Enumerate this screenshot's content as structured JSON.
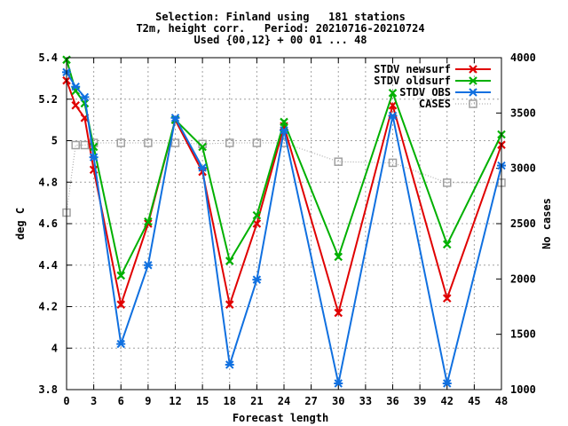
{
  "chart_data": {
    "type": "line",
    "title_lines": [
      "Selection: Finland using   181 stations",
      "T2m, height corr.   Period: 20210716-20210724",
      "Used {00,12} + 00 01 ... 48"
    ],
    "xlabel": "Forecast length",
    "ylabel": "deg C",
    "y2label": "No cases",
    "xlim": [
      0,
      48
    ],
    "ylim": [
      3.8,
      5.4
    ],
    "y2lim": [
      1000,
      4000
    ],
    "x_ticks": [
      0,
      3,
      6,
      9,
      12,
      15,
      18,
      21,
      24,
      27,
      30,
      33,
      36,
      39,
      42,
      45,
      48
    ],
    "y_ticks": [
      3.8,
      4,
      4.2,
      4.4,
      4.6,
      4.8,
      5,
      5.2,
      5.4
    ],
    "y_tick_labels": [
      "3.8",
      "4",
      "4.2",
      "4.4",
      "4.6",
      "4.8",
      "5",
      "5.2",
      "5.4"
    ],
    "y2_ticks": [
      1000,
      1500,
      2000,
      2500,
      3000,
      3500,
      4000
    ],
    "grid": true,
    "legend_position": "top-right",
    "x": [
      0,
      1,
      2,
      3,
      6,
      9,
      12,
      15,
      18,
      21,
      24,
      30,
      36,
      42,
      48
    ],
    "series": [
      {
        "name": "STDV newsurf",
        "axis": "left",
        "color": "#e00000",
        "marker": "x",
        "style": "solid",
        "values": [
          5.29,
          5.17,
          5.11,
          4.86,
          4.21,
          4.6,
          5.1,
          4.85,
          4.21,
          4.6,
          5.07,
          4.17,
          5.17,
          4.24,
          4.98
        ]
      },
      {
        "name": "STDV oldsurf",
        "axis": "left",
        "color": "#00b000",
        "marker": "x",
        "style": "solid",
        "values": [
          5.39,
          5.24,
          5.18,
          4.97,
          4.35,
          4.61,
          5.1,
          4.97,
          4.42,
          4.64,
          5.09,
          4.44,
          5.23,
          4.5,
          5.03
        ]
      },
      {
        "name": "STDV OBS",
        "axis": "left",
        "color": "#1070e0",
        "marker": "star",
        "style": "solid",
        "values": [
          5.33,
          5.26,
          5.21,
          4.92,
          4.02,
          4.4,
          5.11,
          4.87,
          3.92,
          4.33,
          5.05,
          3.83,
          5.12,
          3.83,
          4.88
        ]
      },
      {
        "name": "CASES",
        "axis": "right",
        "color": "#a0a0a0",
        "marker": "square",
        "style": "dotted",
        "values": [
          2600,
          3210,
          3210,
          3230,
          3230,
          3230,
          3230,
          3220,
          3230,
          3230,
          3230,
          3060,
          3050,
          2870,
          2870
        ]
      }
    ]
  }
}
